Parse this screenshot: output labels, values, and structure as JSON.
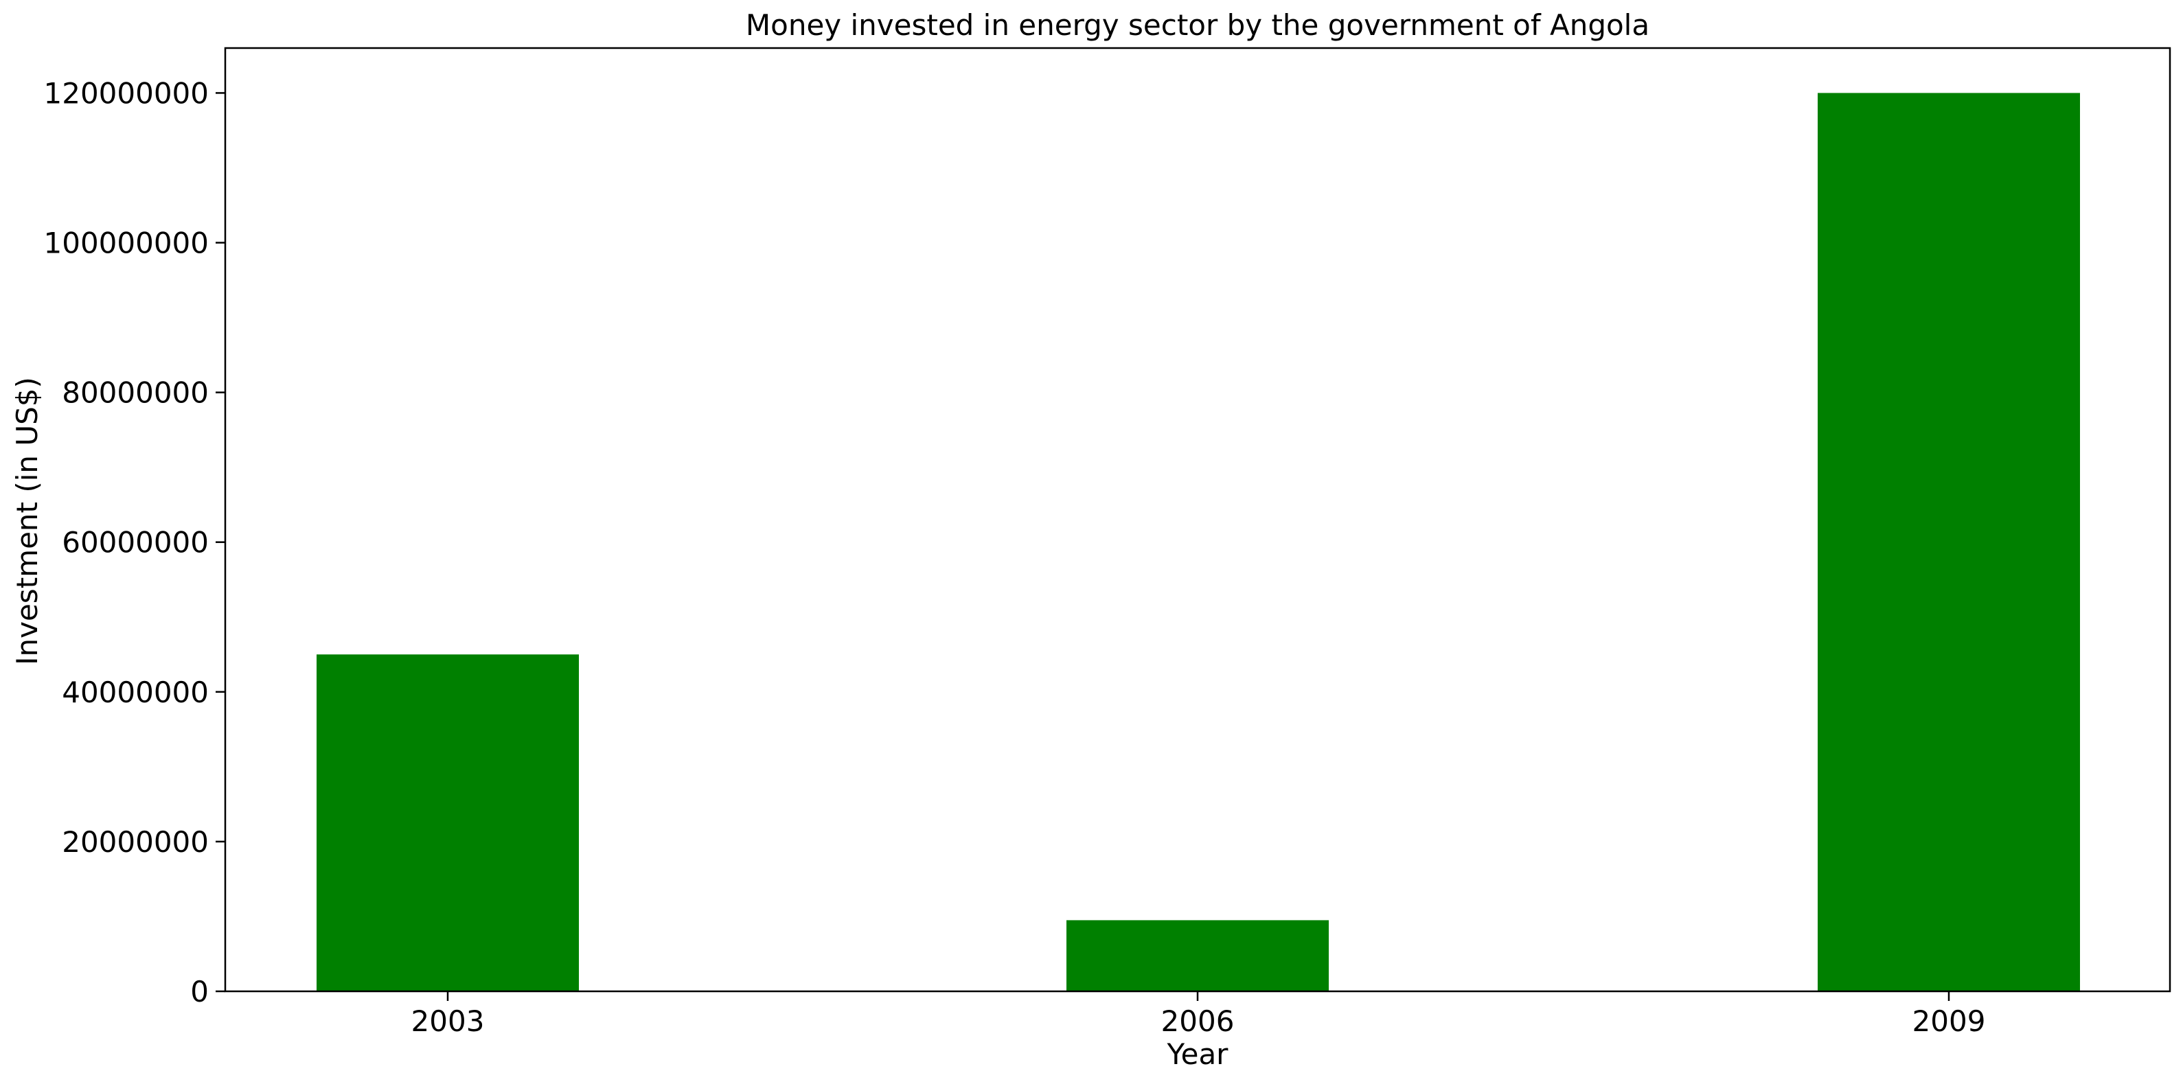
{
  "chart_data": {
    "type": "bar",
    "title": "Money invested in energy sector by the government of Angola",
    "xlabel": "Year",
    "ylabel": "Investment (in US$)",
    "categories": [
      "2003",
      "2006",
      "2009"
    ],
    "values": [
      45000000,
      9500000,
      120000000
    ],
    "ylim": [
      0,
      126000000
    ],
    "yticks": [
      0,
      20000000,
      40000000,
      60000000,
      80000000,
      100000000,
      120000000
    ],
    "ytick_labels": [
      "0",
      "20000000",
      "40000000",
      "60000000",
      "80000000",
      "100000000",
      "120000000"
    ],
    "bar_color": "#008000",
    "grid": false,
    "legend": "none"
  }
}
